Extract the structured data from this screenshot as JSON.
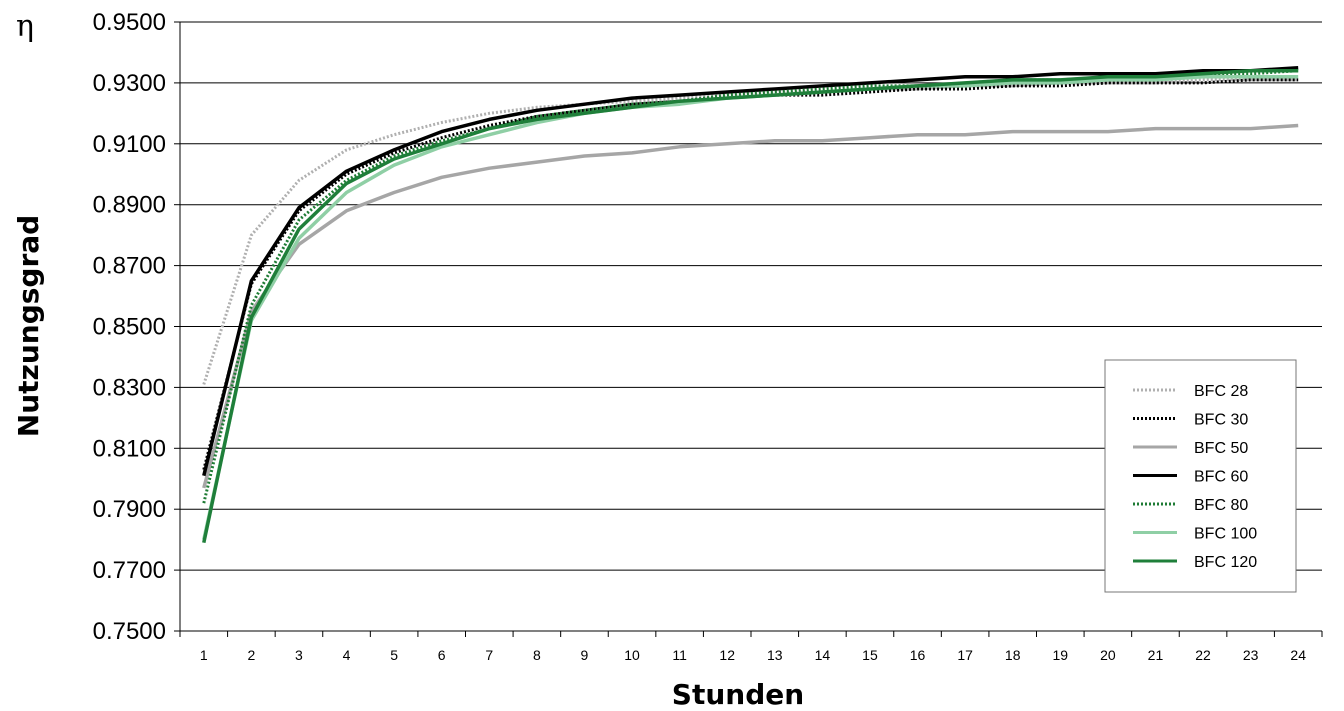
{
  "chart_data": {
    "type": "line",
    "xlabel": "Stunden",
    "ylabel": "Nutzungsgrad",
    "y_symbol": "η",
    "ylim": [
      0.75,
      0.95
    ],
    "ytick_step": 0.02,
    "ytick_labels": [
      "0.7500",
      "0.7700",
      "0.7900",
      "0.8100",
      "0.8300",
      "0.8500",
      "0.8700",
      "0.8900",
      "0.9100",
      "0.9300",
      "0.9500"
    ],
    "x": [
      1,
      2,
      3,
      4,
      5,
      6,
      7,
      8,
      9,
      10,
      11,
      12,
      13,
      14,
      15,
      16,
      17,
      18,
      19,
      20,
      21,
      22,
      23,
      24
    ],
    "grid": "horizontal",
    "legend_position": "bottom-right",
    "series": [
      {
        "name": "BFC 28",
        "color": "#b0b0b0",
        "style": "dotted",
        "values": [
          0.831,
          0.88,
          0.898,
          0.908,
          0.913,
          0.917,
          0.92,
          0.922,
          0.923,
          0.924,
          0.925,
          0.926,
          0.927,
          0.927,
          0.928,
          0.928,
          0.929,
          0.929,
          0.93,
          0.93,
          0.93,
          0.931,
          0.931,
          0.931
        ]
      },
      {
        "name": "BFC 30",
        "color": "#000000",
        "style": "dotted",
        "values": [
          0.803,
          0.864,
          0.888,
          0.9,
          0.907,
          0.912,
          0.916,
          0.919,
          0.921,
          0.923,
          0.924,
          0.925,
          0.926,
          0.926,
          0.927,
          0.928,
          0.928,
          0.929,
          0.929,
          0.93,
          0.93,
          0.93,
          0.931,
          0.931
        ]
      },
      {
        "name": "BFC 50",
        "color": "#a6a6a6",
        "style": "solid",
        "values": [
          0.797,
          0.855,
          0.877,
          0.888,
          0.894,
          0.899,
          0.902,
          0.904,
          0.906,
          0.907,
          0.909,
          0.91,
          0.911,
          0.911,
          0.912,
          0.913,
          0.913,
          0.914,
          0.914,
          0.914,
          0.915,
          0.915,
          0.915,
          0.916
        ]
      },
      {
        "name": "BFC 60",
        "color": "#000000",
        "style": "solid",
        "values": [
          0.801,
          0.865,
          0.889,
          0.901,
          0.908,
          0.914,
          0.918,
          0.921,
          0.923,
          0.925,
          0.926,
          0.927,
          0.928,
          0.929,
          0.93,
          0.931,
          0.932,
          0.932,
          0.933,
          0.933,
          0.933,
          0.934,
          0.934,
          0.935
        ]
      },
      {
        "name": "BFC 80",
        "color": "#1e7b34",
        "style": "dotted",
        "values": [
          0.792,
          0.857,
          0.885,
          0.898,
          0.906,
          0.911,
          0.915,
          0.919,
          0.921,
          0.923,
          0.924,
          0.926,
          0.927,
          0.928,
          0.929,
          0.929,
          0.93,
          0.931,
          0.931,
          0.932,
          0.932,
          0.933,
          0.933,
          0.934
        ]
      },
      {
        "name": "BFC 100",
        "color": "#8fcfa5",
        "style": "solid",
        "values": [
          0.78,
          0.852,
          0.879,
          0.894,
          0.903,
          0.909,
          0.913,
          0.917,
          0.92,
          0.922,
          0.923,
          0.925,
          0.926,
          0.927,
          0.928,
          0.929,
          0.929,
          0.93,
          0.93,
          0.931,
          0.931,
          0.932,
          0.932,
          0.932
        ]
      },
      {
        "name": "BFC 120",
        "color": "#1f7f3a",
        "style": "solid",
        "values": [
          0.779,
          0.853,
          0.882,
          0.897,
          0.905,
          0.91,
          0.915,
          0.918,
          0.92,
          0.922,
          0.924,
          0.925,
          0.926,
          0.927,
          0.928,
          0.929,
          0.93,
          0.931,
          0.931,
          0.932,
          0.932,
          0.933,
          0.934,
          0.934
        ]
      }
    ]
  }
}
